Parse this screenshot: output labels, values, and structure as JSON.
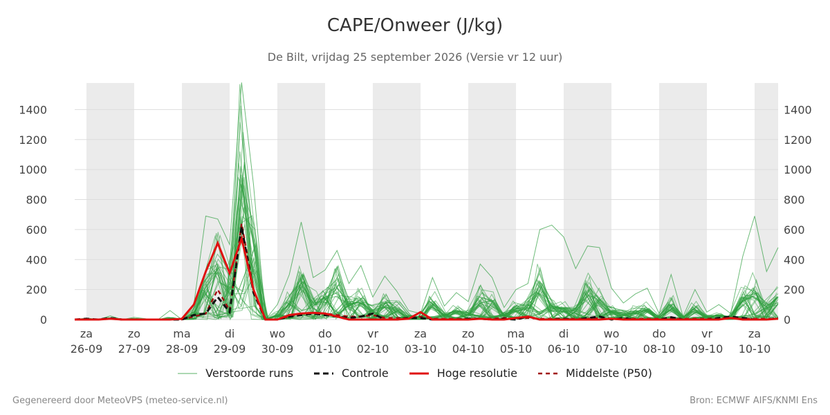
{
  "title": "CAPE/Onweer (J/kg)",
  "subtitle": "De Bilt, vrijdag 25 september 2026 (Versie vr 12 uur)",
  "footer_left": "Gegenereerd door MeteoVPS (meteo-service.nl)",
  "footer_right": "Bron: ECMWF AIFS/KNMI Ens",
  "colors": {
    "ensemble": "#2e9e3e",
    "control": "#111111",
    "hires": "#e01010",
    "median": "#a01010",
    "shading": "#ebebeb",
    "grid": "#dddddd"
  },
  "chart_data": {
    "type": "line",
    "title": "CAPE/Onweer (J/kg)",
    "subtitle": "De Bilt, vrijdag 25 september 2026 (Versie vr 12 uur)",
    "xlabel": "",
    "ylabel": "",
    "ylim": [
      0,
      1600
    ],
    "yticks": [
      0,
      200,
      400,
      600,
      800,
      1000,
      1200,
      1400
    ],
    "xlim": [
      -0.25,
      14.5
    ],
    "grid": true,
    "legend_position": "bottom",
    "x_unit": "days from 26-09 00 UTC",
    "x_tick_labels": [
      {
        "day": "za",
        "date": "26-09"
      },
      {
        "day": "zo",
        "date": "27-09"
      },
      {
        "day": "ma",
        "date": "28-09"
      },
      {
        "day": "di",
        "date": "29-09"
      },
      {
        "day": "wo",
        "date": "30-09"
      },
      {
        "day": "do",
        "date": "01-10"
      },
      {
        "day": "vr",
        "date": "02-10"
      },
      {
        "day": "za",
        "date": "03-10"
      },
      {
        "day": "zo",
        "date": "04-10"
      },
      {
        "day": "ma",
        "date": "05-10"
      },
      {
        "day": "di",
        "date": "06-10"
      },
      {
        "day": "wo",
        "date": "07-10"
      },
      {
        "day": "do",
        "date": "08-10"
      },
      {
        "day": "vr",
        "date": "09-10"
      },
      {
        "day": "za",
        "date": "10-10"
      }
    ],
    "legend": [
      "Verstoorde runs",
      "Controle",
      "Hoge resolutie",
      "Middelste (P50)"
    ],
    "series": [
      {
        "name": "Controle",
        "style": "dashed-black",
        "x": [
          -0.25,
          0,
          0.25,
          0.5,
          0.75,
          1,
          1.25,
          1.5,
          1.75,
          2,
          2.25,
          2.5,
          2.75,
          3,
          3.25,
          3.5,
          3.75,
          4,
          4.25,
          4.5,
          4.75,
          5,
          5.25,
          5.5,
          5.75,
          6,
          6.25,
          6.5,
          6.75,
          7,
          7.25,
          7.5,
          7.75,
          8,
          8.25,
          8.5,
          8.75,
          9,
          9.25,
          9.5,
          9.75,
          10,
          10.25,
          10.5,
          10.75,
          11,
          11.25,
          11.5,
          11.75,
          12,
          12.25,
          12.5,
          12.75,
          13,
          13.25,
          13.5,
          13.75,
          14,
          14.25,
          14.5
        ],
        "values": [
          0,
          5,
          0,
          10,
          0,
          0,
          0,
          0,
          0,
          0,
          30,
          40,
          150,
          50,
          620,
          180,
          0,
          0,
          20,
          30,
          40,
          30,
          20,
          10,
          20,
          40,
          0,
          0,
          10,
          10,
          0,
          0,
          0,
          5,
          5,
          0,
          5,
          0,
          20,
          0,
          0,
          5,
          0,
          10,
          20,
          0,
          10,
          0,
          0,
          0,
          15,
          0,
          0,
          0,
          10,
          20,
          10,
          0,
          0,
          10
        ]
      },
      {
        "name": "Hoge resolutie",
        "style": "solid-red",
        "x": [
          -0.25,
          0,
          0.25,
          0.5,
          0.75,
          1,
          1.25,
          1.5,
          1.75,
          2,
          2.25,
          2.5,
          2.75,
          3,
          3.25,
          3.5,
          3.75,
          4,
          4.25,
          4.5,
          4.75,
          5,
          5.25,
          5.5,
          5.75,
          6,
          6.25,
          6.5,
          6.75,
          7,
          7.25,
          7.5,
          7.75,
          8,
          8.25,
          8.5,
          8.75,
          9,
          9.25,
          9.5,
          9.75,
          10,
          10.25,
          10.5,
          10.75,
          11,
          11.25,
          11.5,
          11.75,
          12,
          12.25,
          12.5,
          12.75,
          13,
          13.25,
          13.5,
          13.75,
          14,
          14.25,
          14.5
        ],
        "values": [
          0,
          0,
          0,
          5,
          0,
          0,
          0,
          0,
          0,
          5,
          100,
          320,
          510,
          310,
          540,
          200,
          0,
          0,
          30,
          40,
          45,
          40,
          20,
          0,
          0,
          0,
          0,
          0,
          5,
          50,
          0,
          0,
          0,
          0,
          5,
          0,
          0,
          10,
          20,
          0,
          0,
          0,
          0,
          0,
          0,
          5,
          0,
          0,
          0,
          0,
          0,
          0,
          0,
          0,
          0,
          10,
          0,
          0,
          0,
          5
        ]
      },
      {
        "name": "Middelste (P50)",
        "style": "dashed-darkred",
        "x": [
          -0.25,
          0,
          0.25,
          0.5,
          0.75,
          1,
          1.25,
          1.5,
          1.75,
          2,
          2.25,
          2.5,
          2.75,
          3,
          3.25,
          3.5,
          3.75,
          4,
          4.25,
          4.5,
          4.75,
          5,
          5.25,
          5.5,
          5.75,
          6,
          6.25,
          6.5,
          6.75,
          7,
          7.25,
          7.5,
          7.75,
          8,
          8.25,
          8.5,
          8.75,
          9,
          9.25,
          9.5,
          9.75,
          10,
          10.25,
          10.5,
          10.75,
          11,
          11.25,
          11.5,
          11.75,
          12,
          12.25,
          12.5,
          12.75,
          13,
          13.25,
          13.5,
          13.75,
          14,
          14.25,
          14.5
        ],
        "values": [
          0,
          0,
          0,
          5,
          0,
          0,
          0,
          0,
          0,
          0,
          20,
          40,
          200,
          60,
          640,
          200,
          0,
          0,
          20,
          40,
          45,
          40,
          30,
          20,
          20,
          30,
          10,
          10,
          10,
          20,
          5,
          5,
          5,
          5,
          5,
          5,
          10,
          5,
          10,
          5,
          5,
          5,
          5,
          5,
          10,
          5,
          5,
          5,
          5,
          5,
          5,
          5,
          5,
          5,
          10,
          10,
          5,
          5,
          5,
          5
        ]
      },
      {
        "name": "Verstoorde runs (upper envelope)",
        "style": "thin-green",
        "x": [
          -0.25,
          0,
          0.25,
          0.5,
          0.75,
          1,
          1.25,
          1.5,
          1.75,
          2,
          2.25,
          2.5,
          2.75,
          3,
          3.25,
          3.5,
          3.75,
          4,
          4.25,
          4.5,
          4.75,
          5,
          5.25,
          5.5,
          5.75,
          6,
          6.25,
          6.5,
          6.75,
          7,
          7.25,
          7.5,
          7.75,
          8,
          8.25,
          8.5,
          8.75,
          9,
          9.25,
          9.5,
          9.75,
          10,
          10.25,
          10.5,
          10.75,
          11,
          11.25,
          11.5,
          11.75,
          12,
          12.25,
          12.5,
          12.75,
          13,
          13.25,
          13.5,
          13.75,
          14,
          14.25,
          14.5
        ],
        "values": [
          0,
          10,
          0,
          25,
          0,
          15,
          5,
          0,
          60,
          0,
          100,
          690,
          670,
          500,
          1580,
          900,
          0,
          100,
          300,
          650,
          280,
          330,
          460,
          240,
          360,
          150,
          290,
          190,
          60,
          40,
          280,
          90,
          180,
          120,
          370,
          280,
          80,
          200,
          240,
          600,
          630,
          550,
          340,
          490,
          480,
          210,
          110,
          170,
          210,
          40,
          300,
          20,
          200,
          50,
          100,
          40,
          420,
          690,
          320,
          480
        ]
      },
      {
        "name": "Verstoorde runs (typical)",
        "style": "thin-green",
        "x": [
          -0.25,
          0,
          0.25,
          0.5,
          0.75,
          1,
          1.25,
          1.5,
          1.75,
          2,
          2.25,
          2.5,
          2.75,
          3,
          3.25,
          3.5,
          3.75,
          4,
          4.25,
          4.5,
          4.75,
          5,
          5.25,
          5.5,
          5.75,
          6,
          6.25,
          6.5,
          6.75,
          7,
          7.25,
          7.5,
          7.75,
          8,
          8.25,
          8.5,
          8.75,
          9,
          9.25,
          9.5,
          9.75,
          10,
          10.25,
          10.5,
          10.75,
          11,
          11.25,
          11.5,
          11.75,
          12,
          12.25,
          12.5,
          12.75,
          13,
          13.25,
          13.5,
          13.75,
          14,
          14.25,
          14.5
        ],
        "values": [
          0,
          5,
          0,
          10,
          0,
          5,
          0,
          0,
          10,
          0,
          40,
          250,
          380,
          250,
          1000,
          500,
          0,
          30,
          120,
          300,
          120,
          150,
          250,
          100,
          150,
          60,
          120,
          80,
          20,
          15,
          120,
          30,
          60,
          40,
          150,
          120,
          30,
          80,
          100,
          250,
          90,
          80,
          60,
          200,
          150,
          60,
          40,
          60,
          80,
          10,
          100,
          5,
          80,
          20,
          30,
          15,
          150,
          200,
          100,
          150
        ]
      }
    ]
  }
}
